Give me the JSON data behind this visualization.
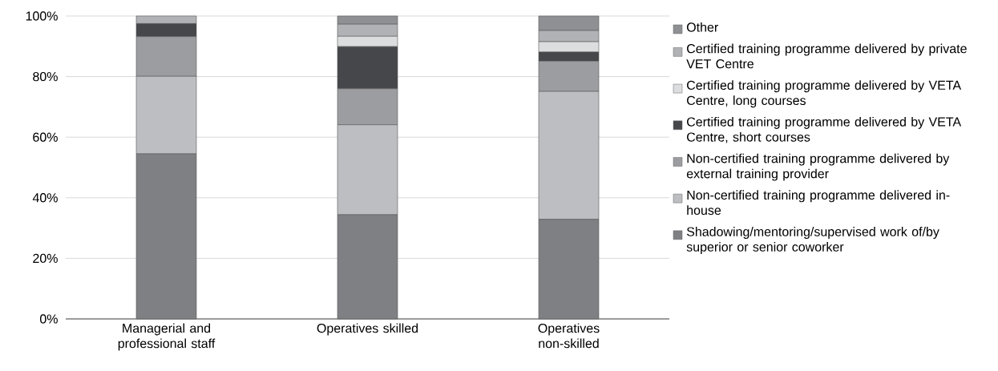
{
  "chart_data": {
    "type": "bar",
    "stacked": true,
    "categories": [
      "Managerial and professional staff",
      "Operatives skilled",
      "Operatives non-skilled"
    ],
    "series": [
      {
        "name": "Shadowing/mentoring/supervised work of/by superior or senior coworker",
        "color": "#7f8084",
        "values": [
          54.5,
          34.4,
          32.9
        ]
      },
      {
        "name": "Non-certified training programme delivered in-house",
        "color": "#bdbec1",
        "values": [
          25.6,
          29.7,
          42.2
        ]
      },
      {
        "name": "Non-certified training programme delivered by external training provider",
        "color": "#9c9da0",
        "values": [
          13.1,
          11.9,
          10.0
        ]
      },
      {
        "name": "Certified training programme delivered by VETA Centre, short courses",
        "color": "#46474a",
        "values": [
          4.3,
          13.9,
          3.0
        ]
      },
      {
        "name": "Certified training programme delivered by VETA Centre, long courses",
        "color": "#dcdddf",
        "values": [
          0,
          3.4,
          3.4
        ]
      },
      {
        "name": "Certified training programme delivered by private VET Centre",
        "color": "#b1b2b5",
        "values": [
          2.5,
          4.0,
          3.7
        ]
      },
      {
        "name": "Other",
        "color": "#8f9093",
        "values": [
          0,
          2.7,
          4.8
        ]
      }
    ],
    "ylim": [
      0,
      100
    ],
    "yticks": [
      {
        "value": 0,
        "label": "0%"
      },
      {
        "value": 20,
        "label": "20%"
      },
      {
        "value": 40,
        "label": "40%"
      },
      {
        "value": 60,
        "label": "60%"
      },
      {
        "value": 80,
        "label": "80%"
      },
      {
        "value": 100,
        "label": "100%"
      }
    ],
    "grid": "y",
    "legend": "right"
  }
}
